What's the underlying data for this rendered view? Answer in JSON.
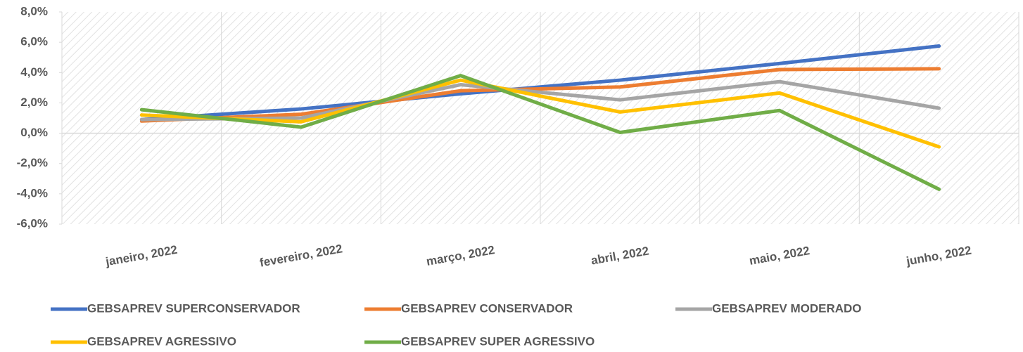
{
  "chart_data": {
    "type": "line",
    "categories": [
      "janeiro, 2022",
      "fevereiro, 2022",
      "março, 2022",
      "abril, 2022",
      "maio, 2022",
      "junho, 2022"
    ],
    "series": [
      {
        "name": "GEBSAPREV SUPERCONSERVADOR",
        "color": "#4472c4",
        "values": [
          0.9,
          1.6,
          2.6,
          3.5,
          4.6,
          5.75
        ]
      },
      {
        "name": "GEBSAPREV CONSERVADOR",
        "color": "#ed7d31",
        "values": [
          0.8,
          1.25,
          2.8,
          3.05,
          4.2,
          4.25
        ]
      },
      {
        "name": "GEBSAPREV MODERADO",
        "color": "#a5a5a5",
        "values": [
          0.9,
          1.0,
          3.2,
          2.2,
          3.4,
          1.65
        ]
      },
      {
        "name": "GEBSAPREV AGRESSIVO",
        "color": "#ffc000",
        "values": [
          1.2,
          0.75,
          3.5,
          1.4,
          2.65,
          -0.9
        ]
      },
      {
        "name": "GEBSAPREV SUPER AGRESSIVO",
        "color": "#70ad47",
        "values": [
          1.55,
          0.4,
          3.8,
          0.05,
          1.5,
          -3.7
        ]
      }
    ],
    "ylim": [
      -6,
      8
    ],
    "yticks": [
      {
        "value": -6,
        "label": "-6,0%"
      },
      {
        "value": -4,
        "label": "-4,0%"
      },
      {
        "value": -2,
        "label": "-2,0%"
      },
      {
        "value": 0,
        "label": "0,0%"
      },
      {
        "value": 2,
        "label": "2,0%"
      },
      {
        "value": 4,
        "label": "4,0%"
      },
      {
        "value": 6,
        "label": "6,0%"
      },
      {
        "value": 8,
        "label": "8,0%"
      }
    ],
    "legend": "bottom"
  }
}
